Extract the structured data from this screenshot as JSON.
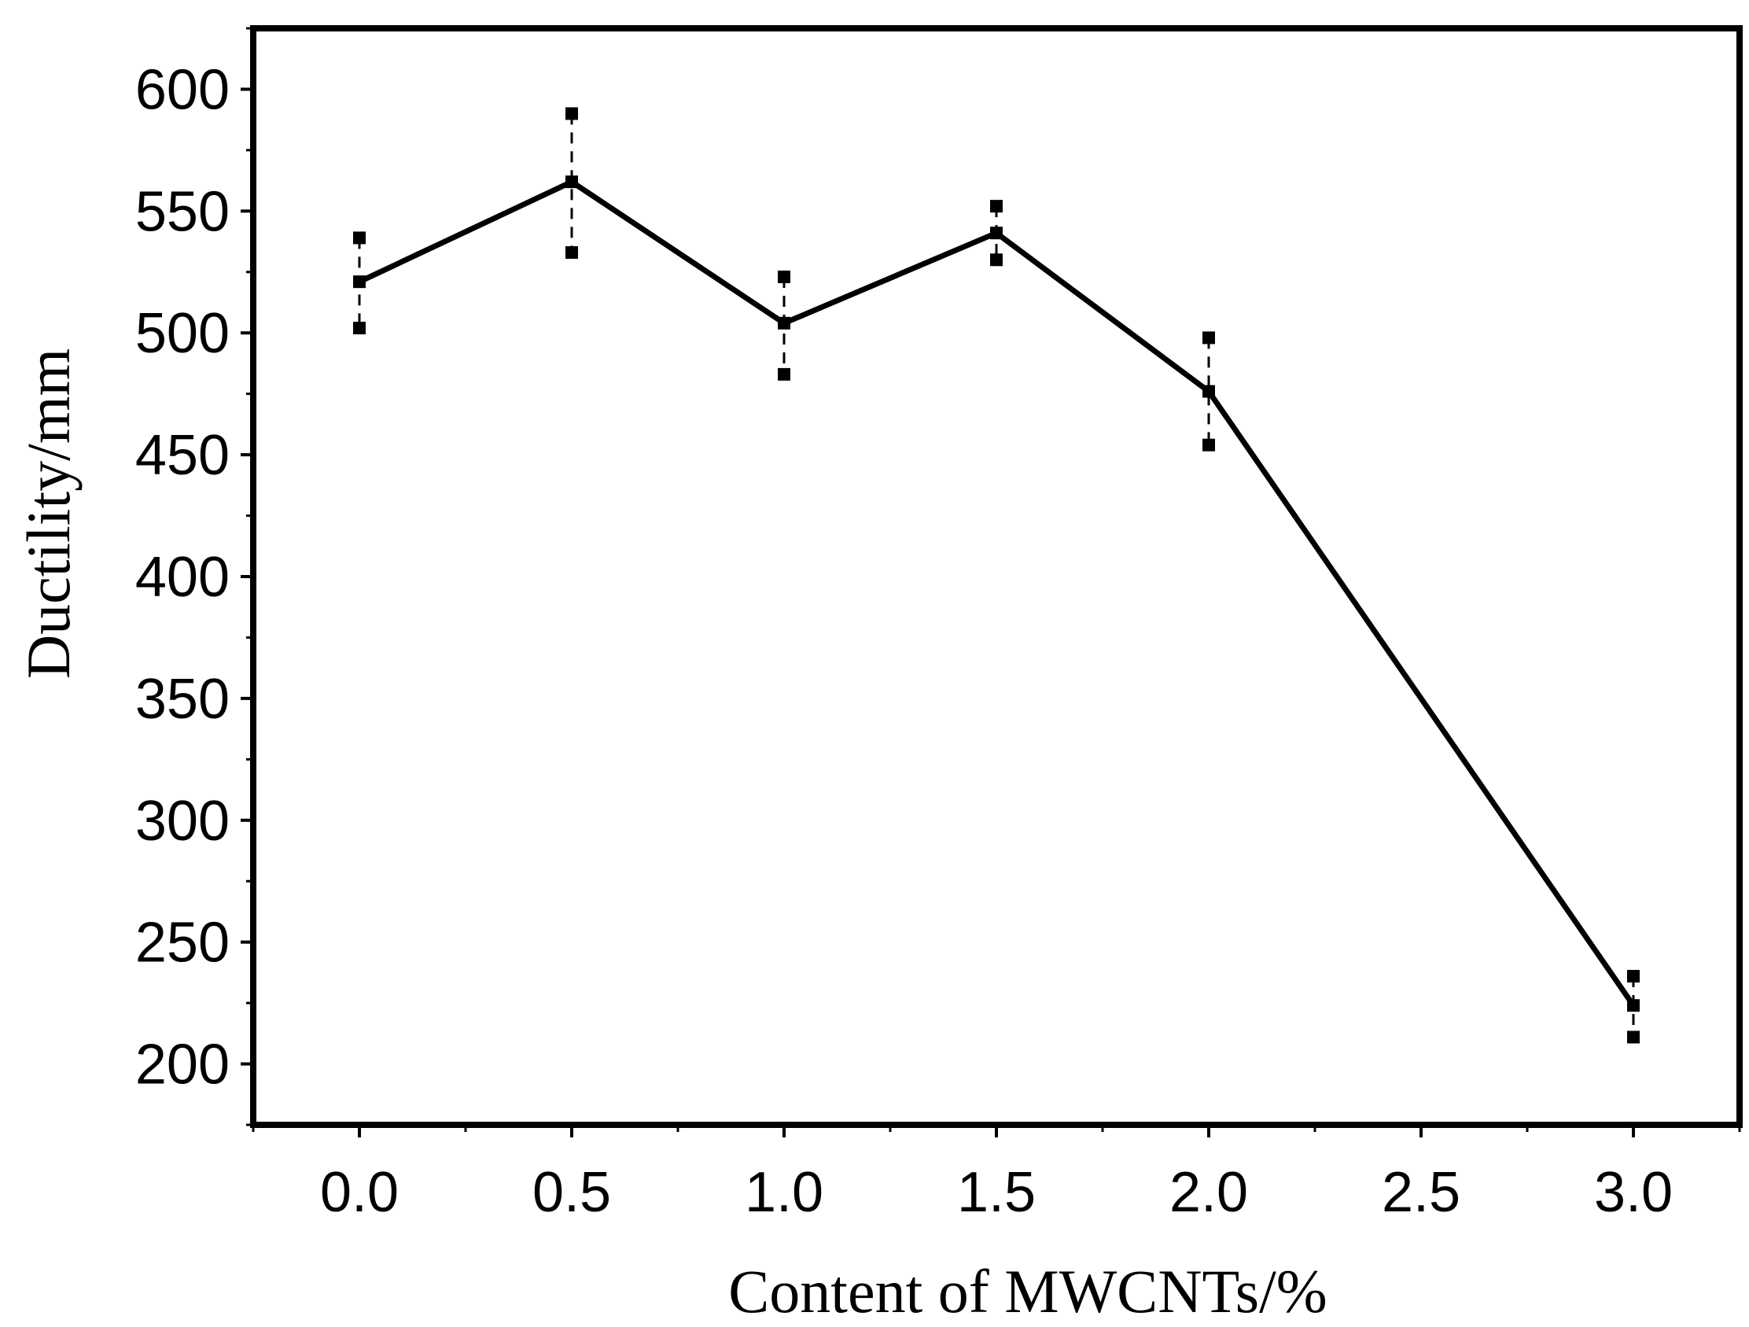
{
  "chart_data": {
    "type": "line",
    "title": "",
    "xlabel": "Content of MWCNTs/%",
    "ylabel": "Ductility/mm",
    "xlim": [
      -0.25,
      3.25
    ],
    "ylim": [
      175,
      625
    ],
    "xticks": [
      0.0,
      0.5,
      1.0,
      1.5,
      2.0,
      2.5,
      3.0
    ],
    "xtick_labels": [
      "0.0",
      "0.5",
      "1.0",
      "1.5",
      "2.0",
      "2.5",
      "3.0"
    ],
    "yticks": [
      200,
      250,
      300,
      350,
      400,
      450,
      500,
      550,
      600
    ],
    "ytick_labels": [
      "200",
      "250",
      "300",
      "350",
      "400",
      "450",
      "500",
      "550",
      "600"
    ],
    "grid": false,
    "series": [
      {
        "name": "Ductility",
        "x": [
          0.0,
          0.5,
          1.0,
          1.5,
          2.0,
          3.0
        ],
        "y": [
          521,
          562,
          504,
          541,
          476,
          224
        ],
        "err_upper": [
          539,
          590,
          523,
          552,
          498,
          236
        ],
        "err_lower": [
          502,
          533,
          483,
          530,
          454,
          211
        ]
      }
    ],
    "colors": {
      "line": "#000000",
      "axis": "#000000"
    }
  }
}
